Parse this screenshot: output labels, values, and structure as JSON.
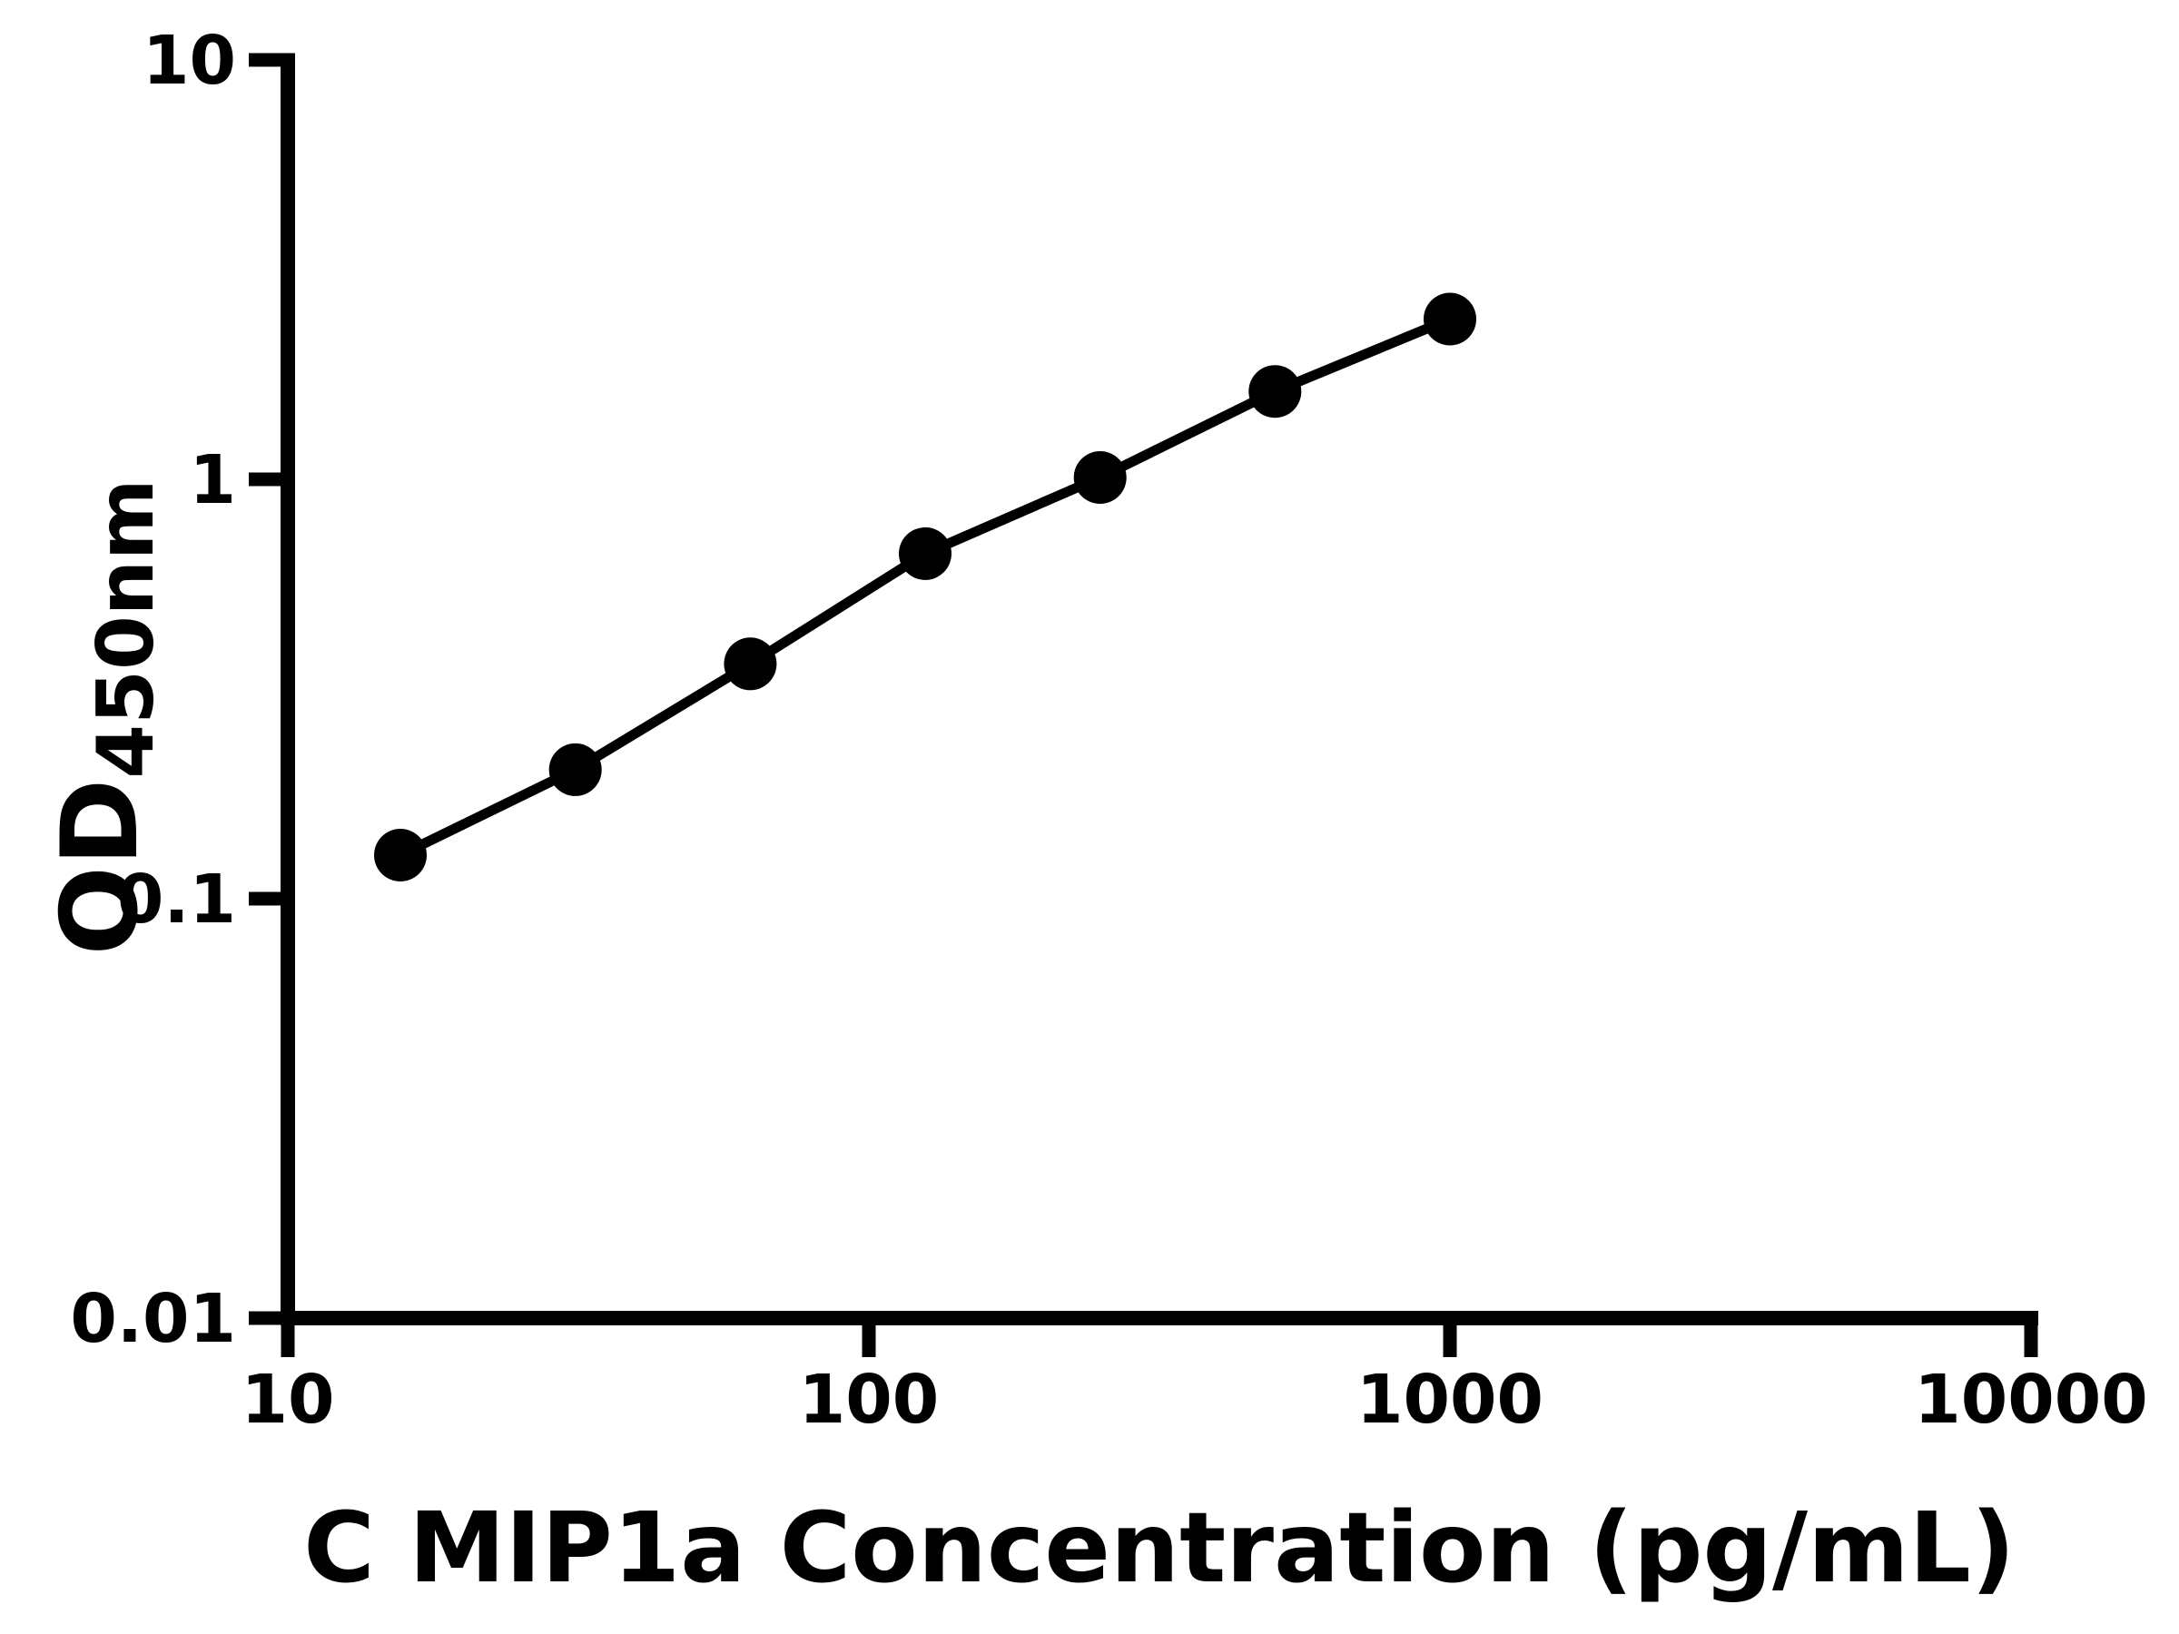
{
  "figure": {
    "background_color": "#ffffff",
    "ink_color": "#000000"
  },
  "chart_data": {
    "type": "line",
    "title": "",
    "xlabel": "C MIP1a Concentration (pg/mL)",
    "ylabel": "OD",
    "ylabel_subscript": "450nm",
    "x_scale": "log",
    "y_scale": "log",
    "xlim": [
      10,
      10000
    ],
    "ylim": [
      0.01,
      10
    ],
    "x_ticks": [
      10,
      100,
      1000,
      10000
    ],
    "x_tick_labels": [
      "10",
      "100",
      "1000",
      "10000"
    ],
    "y_ticks": [
      10,
      1,
      0.1,
      0.01
    ],
    "y_tick_labels": [
      "10",
      "1",
      "0.1",
      "0.01"
    ],
    "grid": false,
    "legend": null,
    "series": [
      {
        "marker": "circle",
        "marker_color": "#000000",
        "line_color": "#000000",
        "points": [
          {
            "x": 15.625,
            "y": 0.127
          },
          {
            "x": 31.25,
            "y": 0.203
          },
          {
            "x": 62.5,
            "y": 0.363
          },
          {
            "x": 125,
            "y": 0.665
          },
          {
            "x": 250,
            "y": 1.01
          },
          {
            "x": 500,
            "y": 1.62
          },
          {
            "x": 1000,
            "y": 2.41
          }
        ]
      }
    ]
  }
}
